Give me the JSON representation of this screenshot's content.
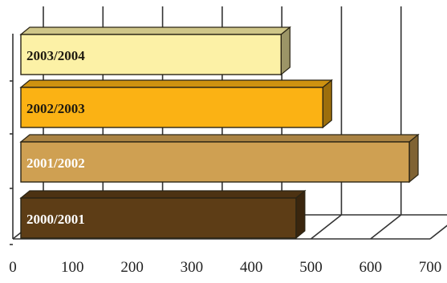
{
  "chart_data": {
    "type": "bar",
    "orientation": "horizontal",
    "style": "3d",
    "categories": [
      "2003/2004",
      "2002/2003",
      "2001/2002",
      "2000/2001"
    ],
    "values": [
      450,
      520,
      665,
      475
    ],
    "colors": [
      "#fcf1a6",
      "#fbb214",
      "#cfa052",
      "#5d3d16"
    ],
    "label_colors": [
      "#1e1a10",
      "#1e1a10",
      "#ffffff",
      "#ffffff"
    ],
    "xlim": [
      0,
      700
    ],
    "x_ticks": [
      "0",
      "100",
      "200",
      "300",
      "400",
      "500",
      "600",
      "700"
    ],
    "grid": true,
    "title": "",
    "xlabel": "",
    "ylabel": "",
    "legend": false
  }
}
